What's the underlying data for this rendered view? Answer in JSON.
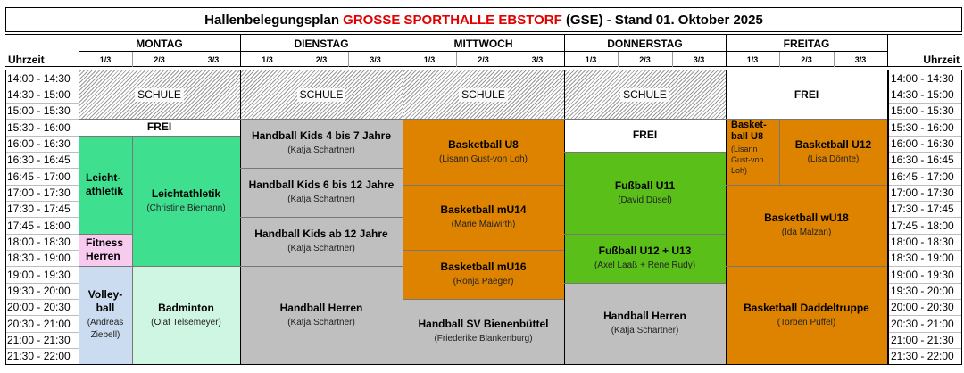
{
  "title": {
    "prefix": "Hallenbelegungsplan",
    "hall": "GROSSE SPORTHALLE EBSTORF",
    "suffix": "(GSE) - Stand 01. Oktober 2025"
  },
  "days": [
    "MONTAG",
    "DIENSTAG",
    "MITTWOCH",
    "DONNERSTAG",
    "FREITAG"
  ],
  "thirds": [
    "1/3",
    "2/3",
    "3/3"
  ],
  "time_header": "Uhrzeit",
  "times": [
    "14:00 - 14:30",
    "14:30 - 15:00",
    "15:00 - 15:30",
    "15:30 - 16:00",
    "16:00 - 16:30",
    "16:30 - 16:45",
    "16:45 - 17:00",
    "17:00 - 17:30",
    "17:30 - 17:45",
    "17:45 - 18:00",
    "18:00 - 18:30",
    "18:30 - 19:00",
    "19:00 - 19:30",
    "19:30 - 20:00",
    "20:00 - 20:30",
    "20:30 - 21:00",
    "21:00 - 21:30",
    "21:30 - 22:00"
  ],
  "colors": {
    "school_hatch": "#9a9a9a",
    "light_green": "#3ee08f",
    "mint": "#cff5e3",
    "pink": "#f7cbee",
    "light_blue": "#ccdcf0",
    "gray": "#bfbfbf",
    "orange": "#de8300",
    "green": "#5bbf1a",
    "free": "#ffffff",
    "title_red": "#e00000"
  },
  "blocks": {
    "mo_schule": {
      "label": "SCHULE"
    },
    "mo_frei": {
      "label": "FREI"
    },
    "mo_leicht1": {
      "label": "Leicht-\nathletik"
    },
    "mo_leicht2": {
      "label": "Leichtathletik",
      "sub": "(Christine Biemann)"
    },
    "mo_fitness": {
      "label": "Fitness\nHerren"
    },
    "mo_volley": {
      "label": "Volley-\nball",
      "sub": "(Andreas\nZiebell)"
    },
    "mo_badminton": {
      "label": "Badminton",
      "sub": "(Olaf Telsemeyer)"
    },
    "di_schule": {
      "label": "SCHULE"
    },
    "di_hk47": {
      "label": "Handball Kids 4 bis 7 Jahre",
      "sub": "(Katja Schartner)"
    },
    "di_hk612": {
      "label": "Handball Kids 6 bis 12 Jahre",
      "sub": "(Katja Schartner)"
    },
    "di_hk12": {
      "label": "Handball Kids ab 12 Jahre",
      "sub": "(Katja Schartner)"
    },
    "di_herren": {
      "label": "Handball Herren",
      "sub": "(Katja Schartner)"
    },
    "mi_schule": {
      "label": "SCHULE"
    },
    "mi_u8": {
      "label": "Basketball U8",
      "sub": "(Lisann Gust-von Loh)"
    },
    "mi_mu14": {
      "label": "Basketball mU14",
      "sub": "(Marie Maiwirth)"
    },
    "mi_mu16": {
      "label": "Basketball mU16",
      "sub": "(Ronja Paeger)"
    },
    "mi_sv": {
      "label": "Handball SV Bienenbüttel",
      "sub": "(Friederike Blankenburg)"
    },
    "do_schule": {
      "label": "SCHULE"
    },
    "do_frei": {
      "label": "FREI"
    },
    "do_u11": {
      "label": "Fußball U11",
      "sub": "(David Düsel)"
    },
    "do_u1213": {
      "label": "Fußball U12 + U13",
      "sub": "(Axel Laaß + Rene Rudy)"
    },
    "do_herren": {
      "label": "Handball Herren",
      "sub": "(Katja Schartner)"
    },
    "fr_frei": {
      "label": "FREI"
    },
    "fr_u8": {
      "label": "Basket-\nball U8",
      "sub": "(Lisann\nGust-von\nLoh)"
    },
    "fr_u12": {
      "label": "Basketball U12",
      "sub": "(Lisa Dörnte)"
    },
    "fr_wu18": {
      "label": "Basketball wU18",
      "sub": "(Ida Malzan)"
    },
    "fr_daddel": {
      "label": "Basketball Daddeltruppe",
      "sub": "(Torben Püffel)"
    }
  }
}
